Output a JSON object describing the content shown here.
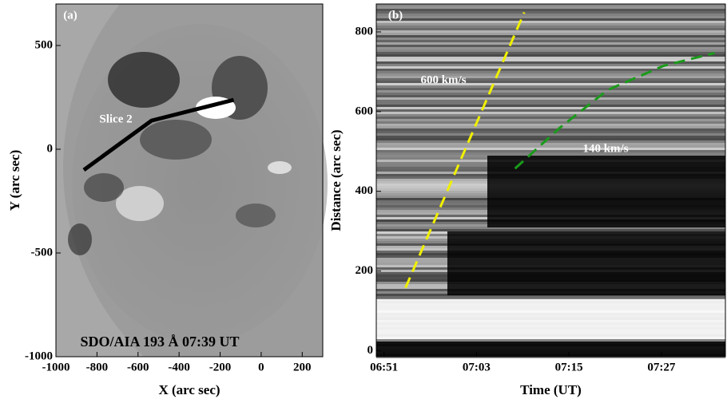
{
  "chart_data": [
    {
      "type": "image",
      "panel_label": "(a)",
      "annotation": "SDO/AIA 193 Å  07:39 UT",
      "xlabel": "X (arc sec)",
      "ylabel": "Y (arc sec)",
      "xlim": [
        -1000,
        300
      ],
      "ylim": [
        -1000,
        700
      ],
      "xticks": [
        -1000,
        -800,
        -600,
        -400,
        -200,
        0,
        200
      ],
      "yticks": [
        -1000,
        -500,
        0,
        500
      ],
      "series": [
        {
          "name": "Slice 2",
          "color": "#000000",
          "dashed": false,
          "x": [
            -864,
            -534,
            -134
          ],
          "y": [
            -100,
            138,
            238
          ]
        }
      ]
    },
    {
      "type": "image",
      "panel_label": "(b)",
      "xlabel": "Time (UT)",
      "ylabel": "Distance (arc sec)",
      "xlim": [
        410,
        455.3
      ],
      "ylim": [
        -15,
        870
      ],
      "xticks": [
        {
          "value": 411,
          "label": "06:51"
        },
        {
          "value": 423,
          "label": "07:03"
        },
        {
          "value": 435,
          "label": "07:15"
        },
        {
          "value": 447,
          "label": "07:27"
        }
      ],
      "yticks": [
        0,
        200,
        400,
        600,
        800
      ],
      "series": [
        {
          "name": "600 km/s",
          "color": "#f0f000",
          "dashed": true,
          "x": [
            413.8,
            429.2
          ],
          "y": [
            158,
            849
          ]
        },
        {
          "name": "140 km/s",
          "color": "#1a9a1a",
          "dashed": true,
          "x": [
            428.0,
            433.8,
            440.0,
            447.3,
            453.9
          ],
          "y": [
            457,
            559,
            654,
            715,
            747
          ]
        }
      ]
    }
  ]
}
